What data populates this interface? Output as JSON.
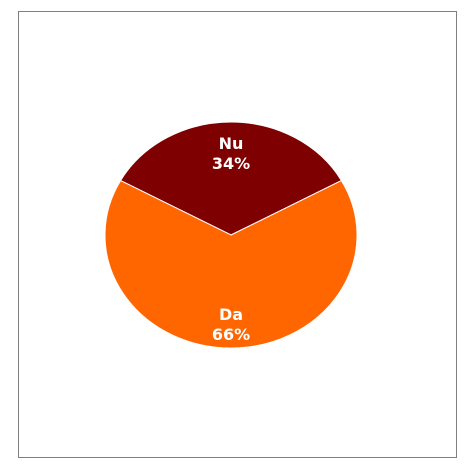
{
  "chart_data": {
    "type": "pie",
    "title": "",
    "slices": [
      {
        "label": "Nu",
        "value": 34,
        "value_label": "34%",
        "color": "#7f0000"
      },
      {
        "label": "Da",
        "value": 66,
        "value_label": "66%",
        "color": "#ff6600"
      }
    ]
  }
}
